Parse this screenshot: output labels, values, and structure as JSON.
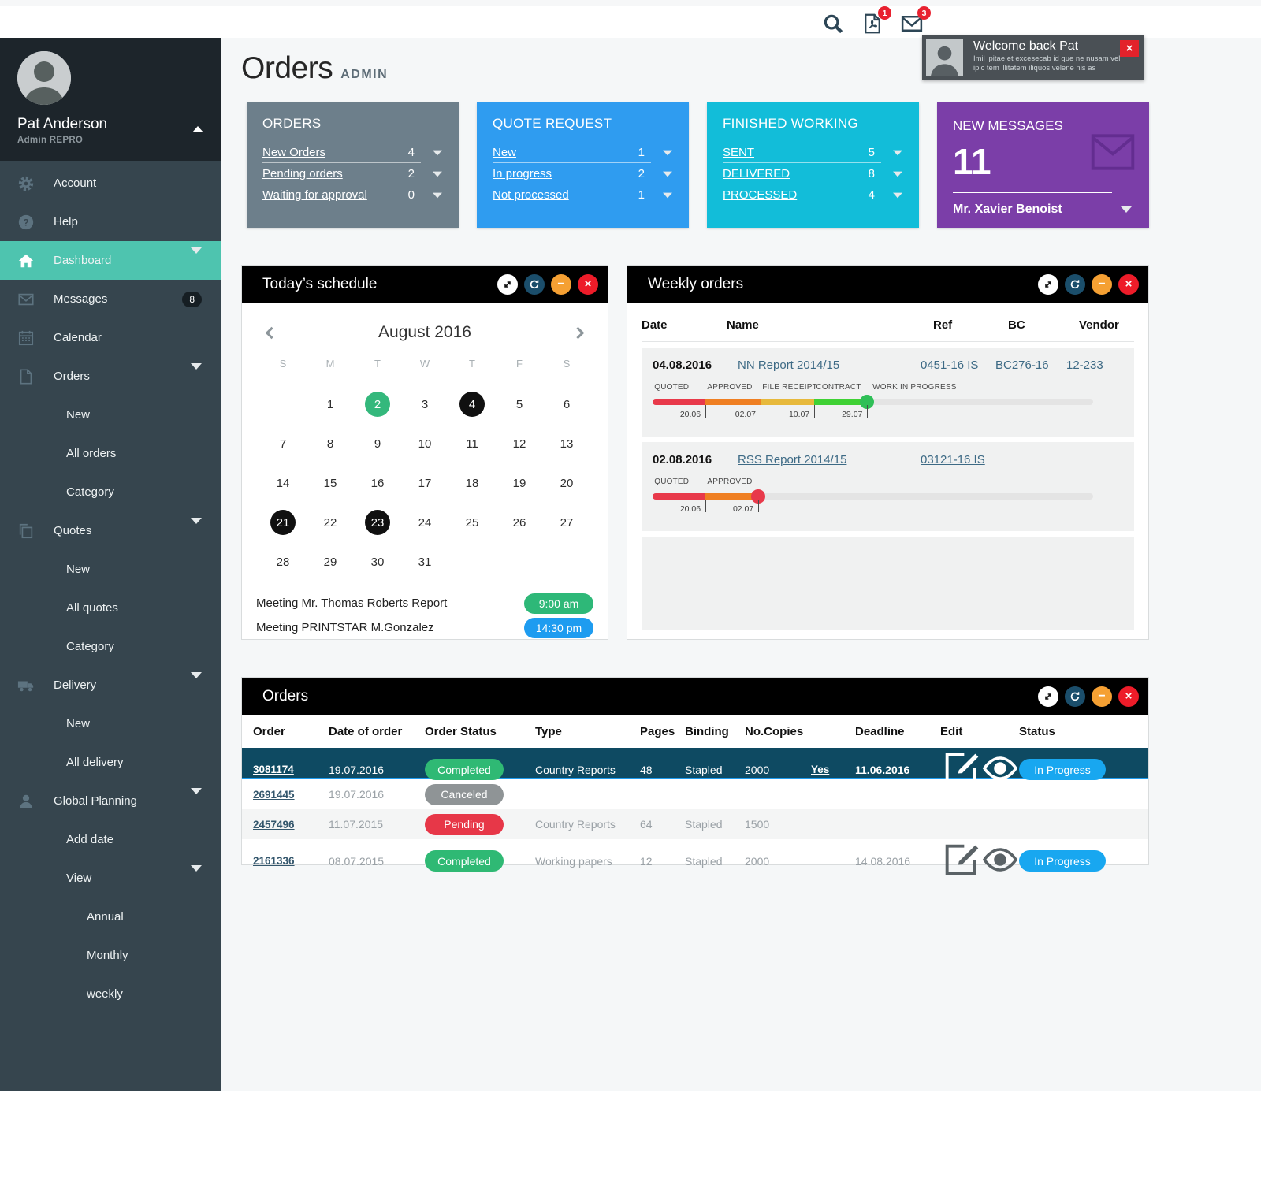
{
  "topbar": {
    "pdf_badge": "1",
    "mail_badge": "3"
  },
  "toast": {
    "title": "Welcome back Pat",
    "body": "Imil ipitae et excesecab id que ne nusam vel ipic tem illitatem iliquos velene nis as"
  },
  "sidebar": {
    "user": {
      "name": "Pat Anderson",
      "role": "Admin REPRO"
    },
    "items": [
      {
        "label": "Account",
        "icon": "gear",
        "level": 0
      },
      {
        "label": "Help",
        "icon": "help",
        "level": 0
      },
      {
        "label": "Dashboard",
        "icon": "home",
        "level": 0,
        "active": true,
        "caret": true
      },
      {
        "label": "Messages",
        "icon": "mail",
        "level": 0,
        "badge": "8"
      },
      {
        "label": "Calendar",
        "icon": "calendar",
        "level": 0
      },
      {
        "label": "Orders",
        "icon": "document",
        "level": 0,
        "caret": true
      },
      {
        "label": "New",
        "level": 1
      },
      {
        "label": "All orders",
        "level": 1
      },
      {
        "label": "Category",
        "level": 1
      },
      {
        "label": "Quotes",
        "icon": "copy",
        "level": 0,
        "caret": true
      },
      {
        "label": "New",
        "level": 1
      },
      {
        "label": "All quotes",
        "level": 1
      },
      {
        "label": "Category",
        "level": 1
      },
      {
        "label": "Delivery",
        "icon": "truck",
        "level": 0,
        "caret": true
      },
      {
        "label": "New",
        "level": 1
      },
      {
        "label": "All delivery",
        "level": 1
      },
      {
        "label": "Global Planning",
        "icon": "person",
        "level": 0,
        "caret": true
      },
      {
        "label": "Add date",
        "level": 1
      },
      {
        "label": "View",
        "level": 1,
        "caret": true
      },
      {
        "label": "Annual",
        "level": 2
      },
      {
        "label": "Monthly",
        "level": 2
      },
      {
        "label": "weekly",
        "level": 2
      }
    ]
  },
  "page": {
    "title": "Orders",
    "subtitle": "ADMIN"
  },
  "stat_cards": [
    {
      "title": "ORDERS",
      "color": "#6d7f8b",
      "rows": [
        {
          "label": "New Orders",
          "value": "4"
        },
        {
          "label": "Pending orders",
          "value": "2"
        },
        {
          "label": "Waiting for approval",
          "value": "0"
        }
      ]
    },
    {
      "title": "QUOTE REQUEST",
      "color": "#2f9cf0",
      "rows": [
        {
          "label": "New",
          "value": "1"
        },
        {
          "label": "In progress",
          "value": "2"
        },
        {
          "label": "Not processed",
          "value": "1"
        }
      ]
    },
    {
      "title": "FINISHED WORKING",
      "color": "#12bdd9",
      "rows": [
        {
          "label": "SENT",
          "value": "5"
        },
        {
          "label": "DELIVERED",
          "value": "8"
        },
        {
          "label": "PROCESSED",
          "value": "4"
        }
      ]
    }
  ],
  "messages_card": {
    "title": "NEW MESSAGES",
    "count": "11",
    "contact": "Mr. Xavier Benoist",
    "color": "#7b3ea8"
  },
  "schedule": {
    "title": "Today’s schedule",
    "month": "August 2016",
    "weekdays": [
      "S",
      "M",
      "T",
      "W",
      "T",
      "F",
      "S"
    ],
    "cells": [
      {
        "d": ""
      },
      {
        "d": "1"
      },
      {
        "d": "2",
        "mark": "green"
      },
      {
        "d": "3"
      },
      {
        "d": "4",
        "mark": "black"
      },
      {
        "d": "5"
      },
      {
        "d": "6"
      },
      {
        "d": "7"
      },
      {
        "d": "8"
      },
      {
        "d": "9"
      },
      {
        "d": "10"
      },
      {
        "d": "11"
      },
      {
        "d": "12"
      },
      {
        "d": "13"
      },
      {
        "d": "14"
      },
      {
        "d": "15"
      },
      {
        "d": "16"
      },
      {
        "d": "17"
      },
      {
        "d": "18"
      },
      {
        "d": "19"
      },
      {
        "d": "20"
      },
      {
        "d": "21",
        "mark": "black"
      },
      {
        "d": "22"
      },
      {
        "d": "23",
        "mark": "black"
      },
      {
        "d": "24"
      },
      {
        "d": "25"
      },
      {
        "d": "26"
      },
      {
        "d": "27"
      },
      {
        "d": "28"
      },
      {
        "d": "29"
      },
      {
        "d": "30"
      },
      {
        "d": "31"
      },
      {
        "d": ""
      },
      {
        "d": ""
      },
      {
        "d": ""
      }
    ],
    "meetings": [
      {
        "title": "Meeting Mr. Thomas Roberts Report",
        "time": "9:00 am",
        "color": "#2eb878"
      },
      {
        "title": "Meeting PRINTSTAR M.Gonzalez",
        "time": "14:30 pm",
        "color": "#1e9cf0"
      }
    ]
  },
  "weekly": {
    "title": "Weekly orders",
    "columns": [
      "Date",
      "Name",
      "Ref",
      "BC",
      "Vendor"
    ],
    "rows": [
      {
        "date": "04.08.2016",
        "name": "NN Report 2014/15",
        "ref": "0451-16 IS",
        "bc": "BC276-16",
        "vendor": "12-233",
        "milestones": [
          {
            "label": "QUOTED",
            "date": "20.06",
            "color": "#e8394a",
            "end": 12
          },
          {
            "label": "APPROVED",
            "date": "02.07",
            "color": "#ef7f22",
            "end": 24.5
          },
          {
            "label": "FILE RECEIPT",
            "date": "10.07",
            "color": "#e7b93c",
            "end": 36.7
          },
          {
            "label": "CONTRACT",
            "date": "29.07",
            "color": "#3fd134",
            "end": 48.7
          }
        ],
        "trailing_label": "WORK IN PROGRESS",
        "dot_color": "#2fbf57"
      },
      {
        "date": "02.08.2016",
        "name": "RSS Report 2014/15",
        "ref": "03121-16 IS",
        "bc": "",
        "vendor": "",
        "milestones": [
          {
            "label": "QUOTED",
            "date": "20.06",
            "color": "#e8394a",
            "end": 12
          },
          {
            "label": "APPROVED",
            "date": "02.07",
            "color": "#ef7f22",
            "end": 24
          }
        ],
        "trailing_label": "",
        "dot_color": "#e8394a"
      }
    ]
  },
  "orders_panel": {
    "title": "Orders",
    "columns": [
      "Order",
      "Date of order",
      "Order Status",
      "Type",
      "Pages",
      "Binding",
      "No.Copies",
      "",
      "Deadline",
      "Edit",
      "",
      "Status"
    ],
    "rows": [
      {
        "order": "3081174",
        "date": "19.07.2016",
        "status": "Completed",
        "status_color": "#2fb974",
        "type": "Country Reports",
        "pages": "48",
        "binding": "Stapled",
        "copies": "2000",
        "approved": "Yes",
        "deadline": "11.06.2016",
        "edit": true,
        "view": true,
        "progress": "In Progress",
        "progress_color": "#18a7f0",
        "selected": true
      },
      {
        "order": "2691445",
        "date": "19.07.2016",
        "status": "Canceled",
        "status_color": "#8f9496",
        "type": "",
        "pages": "",
        "binding": "",
        "copies": "",
        "approved": "",
        "deadline": ""
      },
      {
        "order": "2457496",
        "date": "11.07.2015",
        "status": "Pending",
        "status_color": "#e73748",
        "type": "Country Reports",
        "pages": "64",
        "binding": "Stapled",
        "copies": "1500",
        "approved": "",
        "deadline": "",
        "alt": true
      },
      {
        "order": "2161336",
        "date": "08.07.2015",
        "status": "Completed",
        "status_color": "#2fb974",
        "type": "Working papers",
        "pages": "12",
        "binding": "Stapled",
        "copies": "2000",
        "approved": "",
        "deadline": "14.08.2016",
        "edit": true,
        "view": true,
        "progress": "In Progress",
        "progress_color": "#18a7f0"
      }
    ]
  }
}
